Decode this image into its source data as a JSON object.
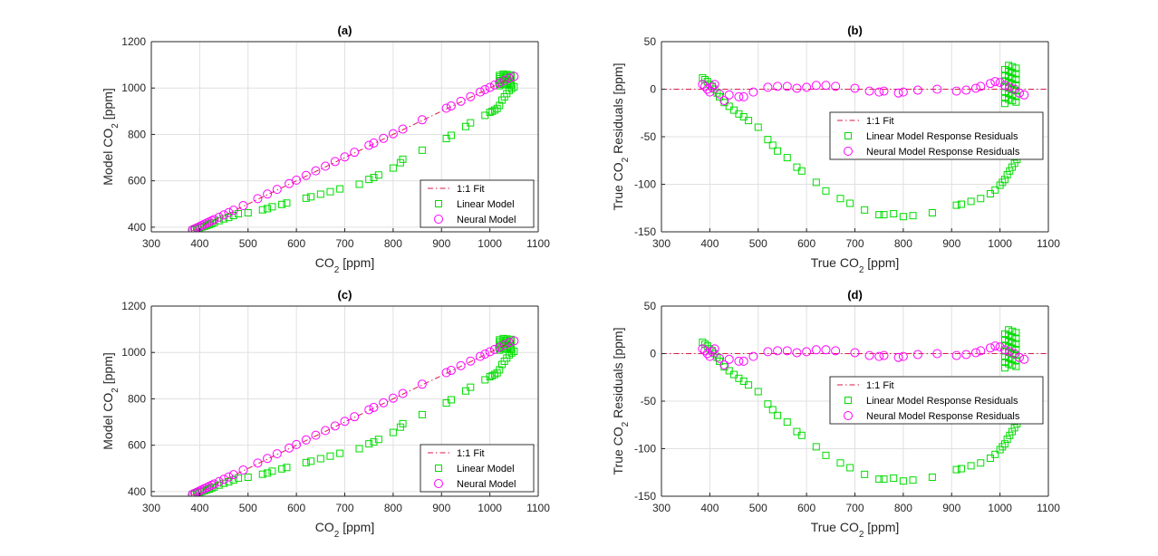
{
  "colors": {
    "fit": "#d81a4a",
    "linear": "#00dd00",
    "neural": "#ff00ff",
    "axis": "#262626",
    "grid": "#e0e0e0"
  },
  "chart_data": [
    {
      "id": "a",
      "type": "scatter",
      "title": "(a)",
      "xlabel": "CO",
      "xlabel_sub": "2",
      "xlabel_suffix": " [ppm]",
      "ylabel": "Model CO",
      "ylabel_sub": "2",
      "ylabel_suffix": " [ppm]",
      "xlim": [
        300,
        1100
      ],
      "ylim": [
        380,
        1200
      ],
      "xticks": [
        300,
        400,
        500,
        600,
        700,
        800,
        900,
        1000,
        1100
      ],
      "yticks": [
        400,
        600,
        800,
        1000,
        1200
      ],
      "grid": true,
      "legend_position": "bottom-right",
      "series": [
        {
          "name": "1:1 Fit",
          "kind": "line",
          "x": [
            385,
            1050
          ],
          "y": [
            385,
            1050
          ]
        },
        {
          "name": "Linear Model",
          "kind": "square",
          "x": [
            385,
            390,
            395,
            400,
            405,
            410,
            415,
            420,
            425,
            430,
            440,
            450,
            460,
            470,
            480,
            500,
            530,
            540,
            550,
            570,
            580,
            620,
            630,
            650,
            670,
            690,
            730,
            750,
            760,
            770,
            800,
            815,
            820,
            860,
            910,
            920,
            950,
            960,
            990,
            1000,
            1005,
            1010,
            1015,
            1020,
            1025,
            1030,
            1035,
            1040,
            1045,
            1050
          ],
          "y": [
            388,
            393,
            396,
            398,
            401,
            404,
            408,
            411,
            416,
            420,
            428,
            436,
            442,
            450,
            458,
            462,
            475,
            480,
            488,
            498,
            504,
            525,
            531,
            542,
            553,
            565,
            585,
            606,
            614,
            625,
            655,
            678,
            693,
            732,
            782,
            796,
            834,
            850,
            882,
            895,
            900,
            905,
            912,
            925,
            948,
            962,
            976,
            990,
            998,
            1005
          ]
        },
        {
          "name": "Neural Model",
          "kind": "circle",
          "x": [
            385,
            390,
            395,
            400,
            405,
            410,
            415,
            420,
            425,
            430,
            440,
            450,
            460,
            470,
            490,
            520,
            540,
            560,
            585,
            600,
            620,
            640,
            660,
            680,
            700,
            720,
            750,
            760,
            780,
            800,
            820,
            860,
            910,
            920,
            940,
            960,
            980,
            990,
            1000,
            1010,
            1020,
            1030,
            1040,
            1050
          ],
          "y": [
            388,
            393,
            398,
            403,
            408,
            413,
            418,
            423,
            428,
            433,
            443,
            453,
            463,
            473,
            493,
            523,
            543,
            563,
            588,
            603,
            623,
            643,
            663,
            683,
            703,
            723,
            753,
            763,
            783,
            803,
            823,
            863,
            913,
            923,
            943,
            963,
            983,
            993,
            1003,
            1013,
            1023,
            1033,
            1043,
            1050
          ]
        }
      ],
      "dense_cluster": {
        "name": "Linear Model",
        "x_range": [
          1020,
          1050
        ],
        "y_range": [
          1010,
          1060
        ]
      }
    },
    {
      "id": "b",
      "type": "scatter",
      "title": "(b)",
      "xlabel": "True CO",
      "xlabel_sub": "2",
      "xlabel_suffix": " [ppm]",
      "ylabel": "True CO",
      "ylabel_sub": "2",
      "ylabel_suffix": " Residuals [ppm]",
      "xlim": [
        300,
        1100
      ],
      "ylim": [
        -150,
        50
      ],
      "xticks": [
        300,
        400,
        500,
        600,
        700,
        800,
        900,
        1000,
        1100
      ],
      "yticks": [
        -150,
        -100,
        -50,
        0,
        50
      ],
      "grid": true,
      "legend_position": "center-right",
      "series": [
        {
          "name": "1:1 Fit",
          "kind": "line",
          "x": [
            300,
            1100
          ],
          "y": [
            0,
            0
          ]
        },
        {
          "name": "Linear Model Response Residuals",
          "kind": "square",
          "x": [
            385,
            390,
            395,
            400,
            405,
            410,
            415,
            420,
            430,
            440,
            450,
            460,
            470,
            480,
            500,
            520,
            530,
            540,
            560,
            580,
            590,
            620,
            640,
            670,
            690,
            720,
            750,
            760,
            780,
            800,
            820,
            860,
            910,
            920,
            940,
            960,
            980,
            990,
            1000,
            1005,
            1010,
            1015,
            1020,
            1025,
            1030,
            1035,
            1040,
            1045,
            1050
          ],
          "y": [
            12,
            10,
            8,
            5,
            3,
            0,
            -4,
            -8,
            -14,
            -18,
            -22,
            -26,
            -29,
            -33,
            -40,
            -53,
            -59,
            -65,
            -72,
            -82,
            -86,
            -98,
            -107,
            -115,
            -120,
            -127,
            -132,
            -132,
            -131,
            -134,
            -133,
            -130,
            -122,
            -121,
            -118,
            -115,
            -110,
            -106,
            -101,
            -98,
            -95,
            -90,
            -86,
            -82,
            -78,
            -74,
            -70,
            -66,
            -62
          ]
        },
        {
          "name": "Neural Model Response Residuals",
          "kind": "circle",
          "x": [
            385,
            390,
            395,
            400,
            405,
            410,
            420,
            430,
            440,
            460,
            470,
            490,
            520,
            540,
            560,
            580,
            600,
            620,
            640,
            660,
            700,
            730,
            750,
            760,
            790,
            800,
            830,
            870,
            910,
            930,
            950,
            960,
            980,
            990,
            1000,
            1010,
            1020,
            1030,
            1040,
            1050
          ],
          "y": [
            5,
            3,
            0,
            -3,
            2,
            5,
            -5,
            -12,
            -6,
            -8,
            -8,
            -3,
            2,
            3,
            3,
            1,
            2,
            4,
            4,
            3,
            1,
            -2,
            -3,
            -2,
            -4,
            -3,
            -1,
            0,
            -2,
            -1,
            1,
            3,
            6,
            8,
            7,
            4,
            2,
            0,
            -4,
            -6
          ]
        }
      ],
      "dense_cluster": {
        "name": "Linear Model Response Residuals",
        "x_range": [
          1010,
          1040
        ],
        "y_range": [
          -15,
          25
        ]
      }
    },
    {
      "id": "c",
      "type": "scatter",
      "title": "(c)",
      "xlabel": "CO",
      "xlabel_sub": "2",
      "xlabel_suffix": " [ppm]",
      "ylabel": "Model CO",
      "ylabel_sub": "2",
      "ylabel_suffix": " [ppm]",
      "xlim": [
        300,
        1100
      ],
      "ylim": [
        380,
        1200
      ],
      "xticks": [
        300,
        400,
        500,
        600,
        700,
        800,
        900,
        1000,
        1100
      ],
      "yticks": [
        400,
        600,
        800,
        1000,
        1200
      ],
      "grid": true,
      "legend_position": "bottom-right",
      "series": [
        {
          "name": "1:1 Fit",
          "kind": "line",
          "x": [
            385,
            1050
          ],
          "y": [
            385,
            1050
          ]
        },
        {
          "name": "Linear Model",
          "kind": "square",
          "x": [
            385,
            390,
            395,
            400,
            405,
            410,
            415,
            420,
            425,
            430,
            440,
            450,
            460,
            470,
            480,
            500,
            530,
            540,
            550,
            570,
            580,
            620,
            630,
            650,
            670,
            690,
            730,
            750,
            760,
            770,
            800,
            815,
            820,
            860,
            910,
            920,
            950,
            960,
            990,
            1000,
            1005,
            1010,
            1015,
            1020,
            1025,
            1030,
            1035,
            1040,
            1045,
            1050
          ],
          "y": [
            388,
            393,
            396,
            398,
            401,
            404,
            408,
            411,
            416,
            420,
            428,
            436,
            442,
            450,
            458,
            462,
            475,
            480,
            488,
            498,
            504,
            525,
            531,
            542,
            553,
            565,
            585,
            606,
            614,
            625,
            655,
            678,
            693,
            732,
            782,
            796,
            834,
            850,
            882,
            895,
            900,
            905,
            912,
            925,
            948,
            962,
            976,
            990,
            998,
            1005
          ]
        },
        {
          "name": "Neural Model",
          "kind": "circle",
          "x": [
            385,
            390,
            395,
            400,
            405,
            410,
            415,
            420,
            425,
            430,
            440,
            450,
            460,
            470,
            490,
            520,
            540,
            560,
            585,
            600,
            620,
            640,
            660,
            680,
            700,
            720,
            750,
            760,
            780,
            800,
            820,
            860,
            910,
            920,
            940,
            960,
            980,
            990,
            1000,
            1010,
            1020,
            1030,
            1040,
            1050
          ],
          "y": [
            388,
            393,
            398,
            403,
            408,
            413,
            418,
            423,
            428,
            433,
            443,
            453,
            463,
            473,
            493,
            523,
            543,
            563,
            588,
            603,
            623,
            643,
            663,
            683,
            703,
            723,
            753,
            763,
            783,
            803,
            823,
            863,
            913,
            923,
            943,
            963,
            983,
            993,
            1003,
            1013,
            1023,
            1033,
            1043,
            1050
          ]
        }
      ],
      "dense_cluster": {
        "name": "Linear Model",
        "x_range": [
          1020,
          1050
        ],
        "y_range": [
          1010,
          1060
        ]
      }
    },
    {
      "id": "d",
      "type": "scatter",
      "title": "(d)",
      "xlabel": "True CO",
      "xlabel_sub": "2",
      "xlabel_suffix": " [ppm]",
      "ylabel": "True CO",
      "ylabel_sub": "2",
      "ylabel_suffix": " Residuals [ppm]",
      "xlim": [
        300,
        1100
      ],
      "ylim": [
        -150,
        50
      ],
      "xticks": [
        300,
        400,
        500,
        600,
        700,
        800,
        900,
        1000,
        1100
      ],
      "yticks": [
        -150,
        -100,
        -50,
        0,
        50
      ],
      "grid": true,
      "legend_position": "center-right",
      "series": [
        {
          "name": "1:1 Fit",
          "kind": "line",
          "x": [
            300,
            1100
          ],
          "y": [
            0,
            0
          ]
        },
        {
          "name": "Linear Model Response Residuals",
          "kind": "square",
          "x": [
            385,
            390,
            395,
            400,
            405,
            410,
            415,
            420,
            430,
            440,
            450,
            460,
            470,
            480,
            500,
            520,
            530,
            540,
            560,
            580,
            590,
            620,
            640,
            670,
            690,
            720,
            750,
            760,
            780,
            800,
            820,
            860,
            910,
            920,
            940,
            960,
            980,
            990,
            1000,
            1005,
            1010,
            1015,
            1020,
            1025,
            1030,
            1035,
            1040,
            1045,
            1050
          ],
          "y": [
            12,
            10,
            8,
            5,
            3,
            0,
            -4,
            -8,
            -14,
            -18,
            -22,
            -26,
            -29,
            -33,
            -40,
            -53,
            -59,
            -65,
            -72,
            -82,
            -86,
            -98,
            -107,
            -115,
            -120,
            -127,
            -132,
            -132,
            -131,
            -134,
            -133,
            -130,
            -122,
            -121,
            -118,
            -115,
            -110,
            -106,
            -101,
            -98,
            -95,
            -90,
            -86,
            -82,
            -78,
            -74,
            -70,
            -66,
            -62
          ]
        },
        {
          "name": "Neural Model Response Residuals",
          "kind": "circle",
          "x": [
            385,
            390,
            395,
            400,
            405,
            410,
            420,
            430,
            440,
            460,
            470,
            490,
            520,
            540,
            560,
            580,
            600,
            620,
            640,
            660,
            700,
            730,
            750,
            760,
            790,
            800,
            830,
            870,
            910,
            930,
            950,
            960,
            980,
            990,
            1000,
            1010,
            1020,
            1030,
            1040,
            1050
          ],
          "y": [
            5,
            3,
            0,
            -3,
            2,
            5,
            -5,
            -12,
            -6,
            -8,
            -8,
            -3,
            2,
            3,
            3,
            1,
            2,
            4,
            4,
            3,
            1,
            -2,
            -3,
            -2,
            -4,
            -3,
            -1,
            0,
            -2,
            -1,
            1,
            3,
            6,
            8,
            7,
            4,
            2,
            0,
            -4,
            -6
          ]
        }
      ],
      "dense_cluster": {
        "name": "Linear Model Response Residuals",
        "x_range": [
          1010,
          1040
        ],
        "y_range": [
          -15,
          25
        ]
      }
    }
  ]
}
